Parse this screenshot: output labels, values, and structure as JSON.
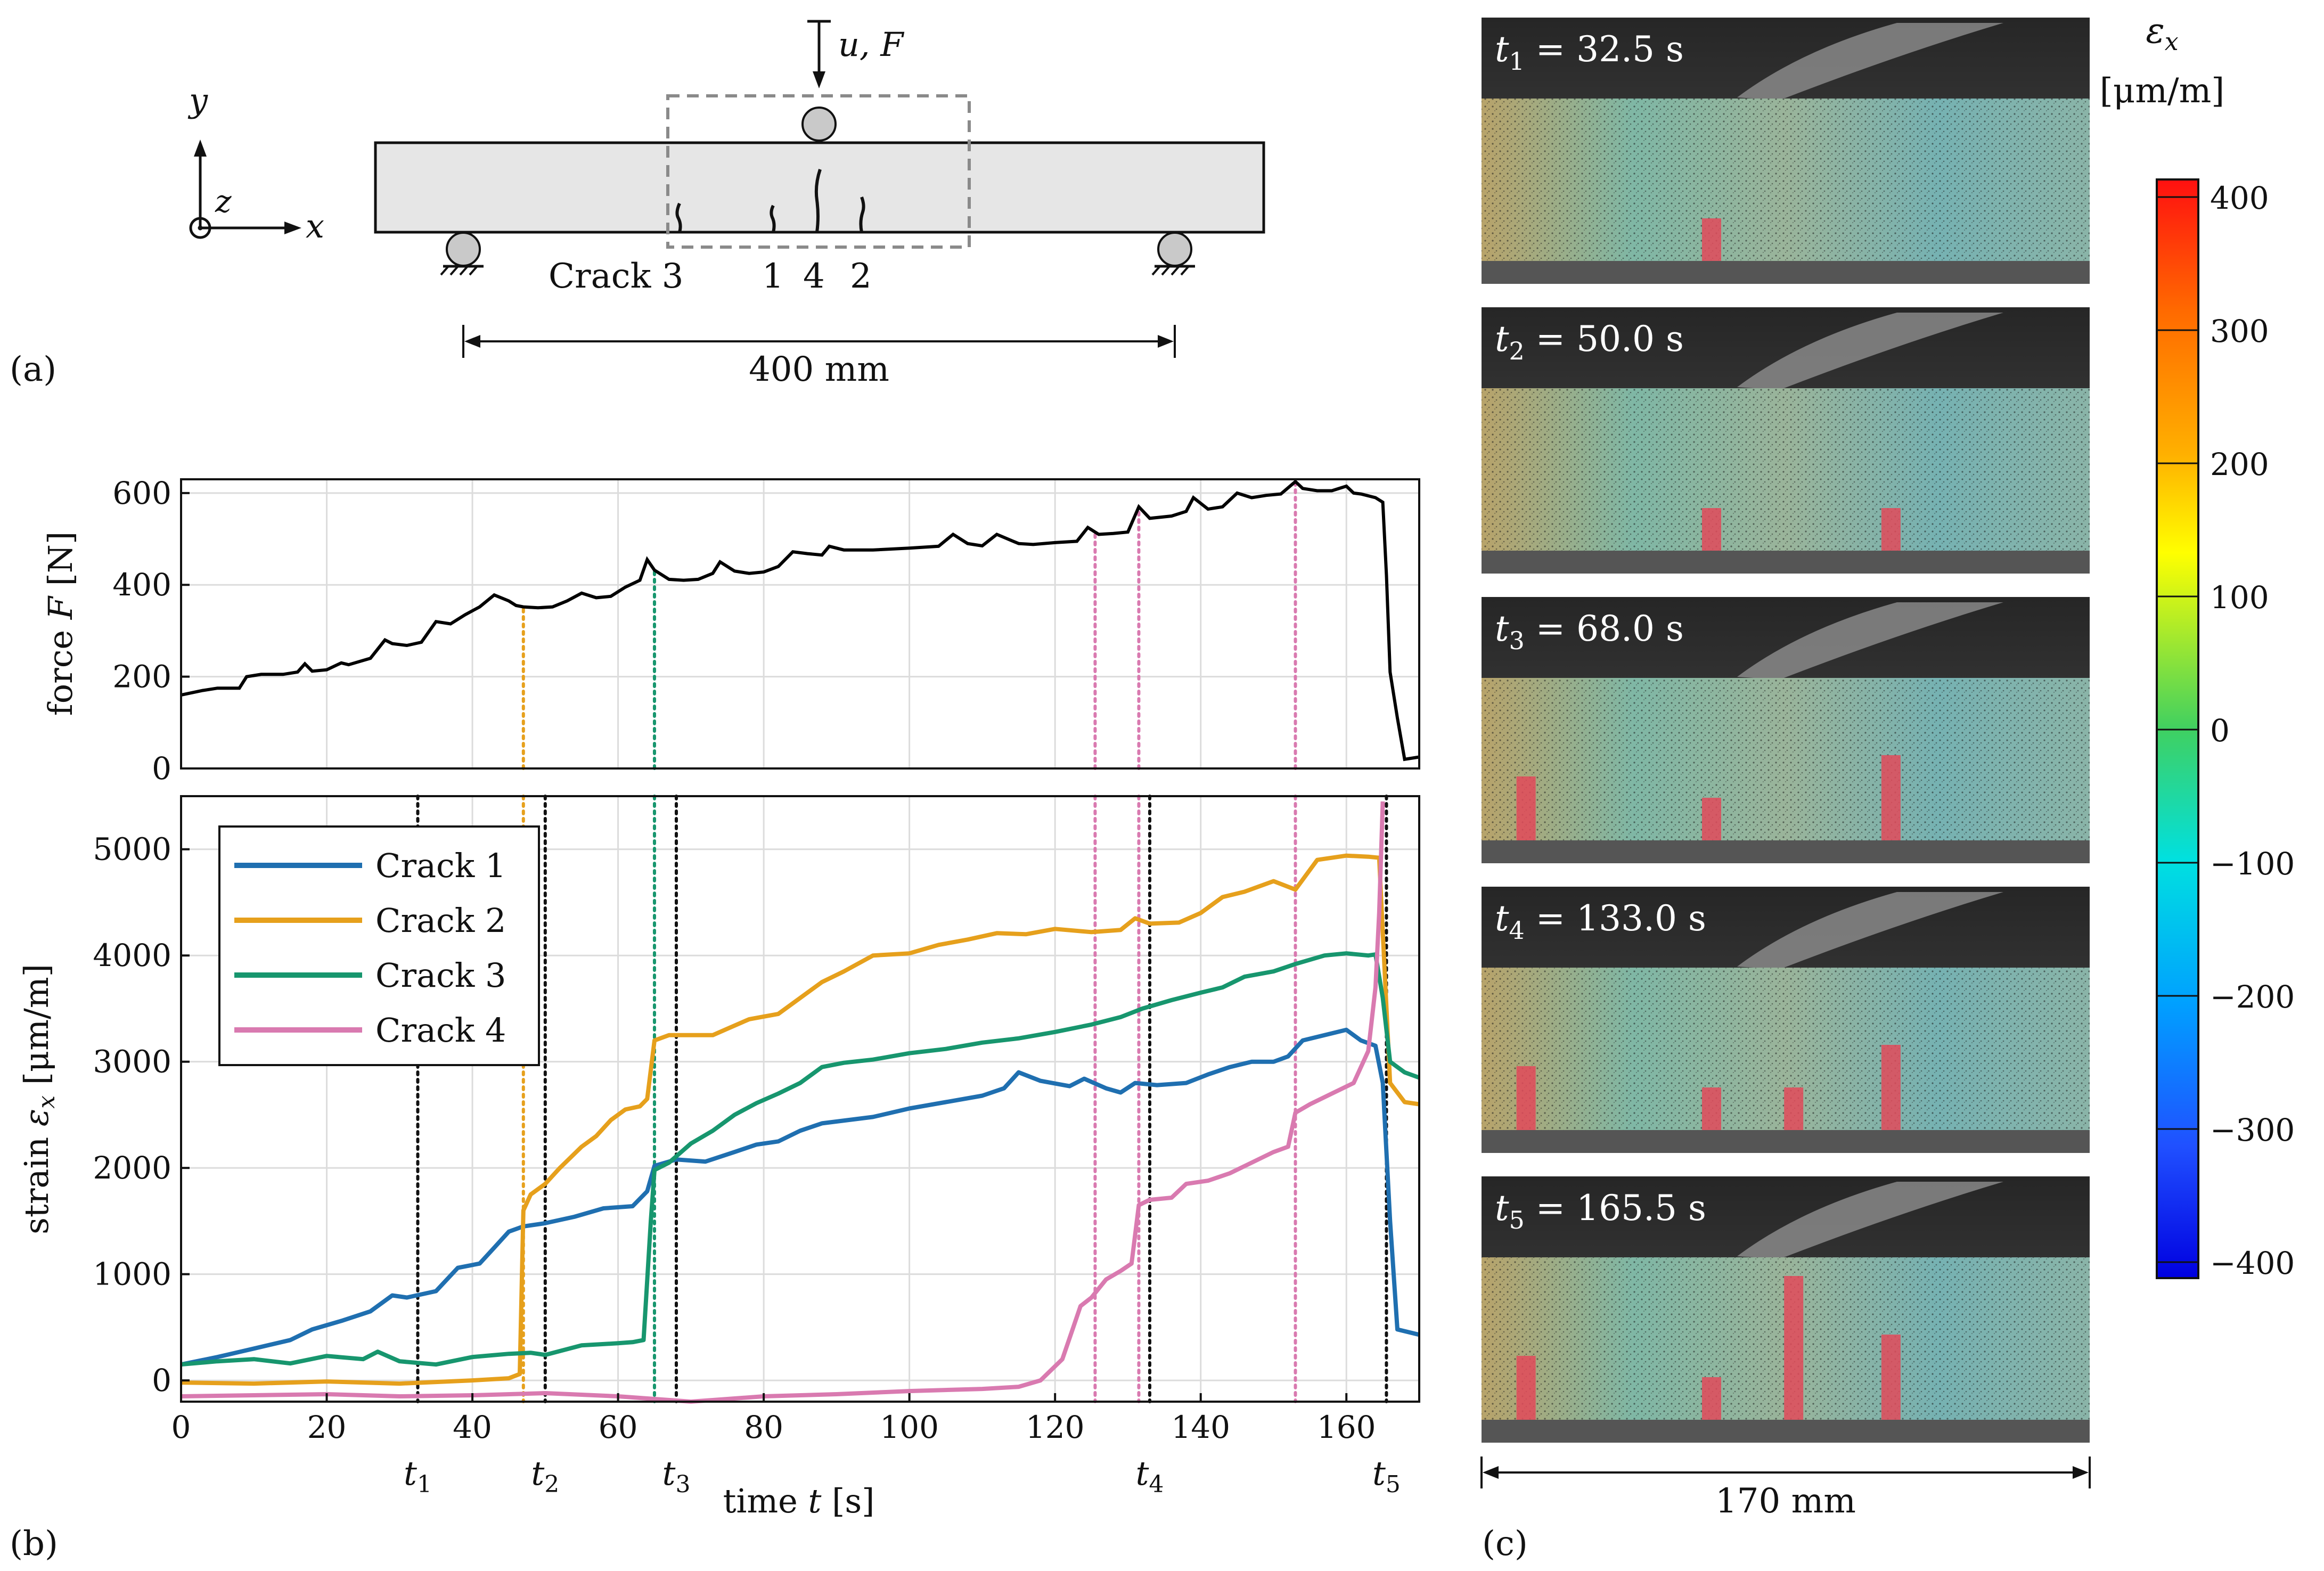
{
  "panel_a": {
    "label": "(a)",
    "load": "u, F",
    "axis_x": "x",
    "axis_y": "y",
    "axis_z": "z",
    "crack_labels": [
      "Crack 3",
      "1",
      "4",
      "2"
    ],
    "span": "400 mm"
  },
  "panel_b": {
    "label": "(b)",
    "time_markers": [
      {
        "name": "t1",
        "sym": "t",
        "sub": "1",
        "time": 32.5
      },
      {
        "name": "t2",
        "sym": "t",
        "sub": "2",
        "time": 50.0
      },
      {
        "name": "t3",
        "sym": "t",
        "sub": "3",
        "time": 68.0
      },
      {
        "name": "t4",
        "sym": "t",
        "sub": "4",
        "time": 133.0
      },
      {
        "name": "t5",
        "sym": "t",
        "sub": "5",
        "time": 165.5
      }
    ],
    "crack_onsets": [
      {
        "crack": "Crack 2",
        "time": 47,
        "color": "#e6a01c"
      },
      {
        "crack": "Crack 3",
        "time": 65,
        "color": "#17966e"
      },
      {
        "crack": "Crack 4",
        "time": 125.5,
        "color": "#d97ab0"
      },
      {
        "crack": "Crack 4",
        "time": 131.5,
        "color": "#d97ab0"
      },
      {
        "crack": "Crack 4",
        "time": 153,
        "color": "#d97ab0"
      }
    ]
  },
  "panel_c": {
    "label": "(c)",
    "width_label": "170 mm",
    "snapshots": [
      {
        "sym": "t",
        "sub": "1",
        "value": " = 32.5 s"
      },
      {
        "sym": "t",
        "sub": "2",
        "value": " = 50.0 s"
      },
      {
        "sym": "t",
        "sub": "3",
        "value": " = 68.0 s"
      },
      {
        "sym": "t",
        "sub": "4",
        "value": " = 133.0 s"
      },
      {
        "sym": "t",
        "sub": "5",
        "value": " = 165.5 s"
      }
    ],
    "colorbar": {
      "title_sym": "ε",
      "title_sub": "x",
      "unit": "[μm/m]",
      "ticks": [
        "400",
        "300",
        "200",
        "100",
        "0",
        "−100",
        "−200",
        "−300",
        "−400"
      ],
      "range": [
        -400,
        400
      ]
    }
  },
  "chart_data": [
    {
      "type": "line",
      "title": "",
      "xlabel": "",
      "ylabel_pre": "force ",
      "ylabel_sym": "F",
      "ylabel_unit": " [N]",
      "xlim": [
        0,
        170
      ],
      "ylim": [
        0,
        630
      ],
      "xticks": [
        0,
        20,
        40,
        60,
        80,
        100,
        120,
        140,
        160
      ],
      "yticks": [
        0,
        200,
        400,
        600
      ],
      "grid": true,
      "series": [
        {
          "name": "force",
          "color": "#000000",
          "x": [
            0,
            3,
            5,
            8,
            9,
            11,
            14,
            16,
            17,
            18,
            20,
            22,
            23,
            26,
            28,
            29,
            31,
            33,
            35,
            37,
            38,
            39,
            41,
            43,
            45,
            46,
            47,
            49,
            51,
            53,
            55,
            57,
            59,
            61,
            63,
            64,
            65,
            67,
            69,
            71,
            73,
            74,
            76,
            78,
            80,
            82,
            84,
            86,
            88,
            89,
            91,
            95,
            100,
            104,
            106,
            108,
            110,
            112,
            115,
            117,
            120,
            123,
            124.5,
            126,
            128,
            130,
            131.5,
            133,
            136,
            138,
            139,
            141,
            143,
            145,
            147,
            149,
            151,
            153,
            154,
            156,
            158,
            160,
            161,
            162,
            164,
            165,
            165.5,
            166,
            167,
            168,
            170
          ],
          "y": [
            160,
            170,
            175,
            175,
            200,
            205,
            205,
            210,
            228,
            212,
            215,
            230,
            226,
            240,
            280,
            272,
            268,
            275,
            320,
            315,
            325,
            335,
            352,
            378,
            365,
            355,
            352,
            350,
            352,
            365,
            382,
            372,
            375,
            395,
            410,
            455,
            432,
            412,
            410,
            412,
            425,
            450,
            430,
            425,
            428,
            440,
            472,
            468,
            465,
            484,
            476,
            476,
            480,
            484,
            510,
            490,
            485,
            510,
            490,
            488,
            492,
            495,
            525,
            510,
            512,
            515,
            570,
            545,
            550,
            560,
            590,
            565,
            570,
            600,
            590,
            595,
            598,
            625,
            610,
            605,
            605,
            615,
            600,
            598,
            590,
            580,
            420,
            210,
            110,
            20,
            25
          ]
        }
      ]
    },
    {
      "type": "line",
      "title": "",
      "xlabel_pre": "time ",
      "xlabel_sym": "t",
      "xlabel_unit": " [s]",
      "ylabel_pre": "strain ",
      "ylabel_sym": "ε",
      "ylabel_sub": "x",
      "ylabel_unit": " [μm/m]",
      "xlim": [
        0,
        170
      ],
      "ylim": [
        -200,
        5500
      ],
      "xticks": [
        0,
        20,
        40,
        60,
        80,
        100,
        120,
        140,
        160
      ],
      "yticks": [
        0,
        1000,
        2000,
        3000,
        4000,
        5000
      ],
      "grid": true,
      "legend": "top-left",
      "series": [
        {
          "name": "Crack 1",
          "color": "#1f6fb0",
          "x": [
            0,
            5,
            10,
            15,
            18,
            22,
            26,
            29,
            31,
            35,
            38,
            41,
            43,
            45,
            47,
            50,
            54,
            58,
            62,
            64,
            65,
            68,
            72,
            76,
            79,
            82,
            85,
            88,
            95,
            100,
            105,
            110,
            113,
            115,
            118,
            122,
            124,
            127,
            129,
            131,
            134,
            138,
            141,
            144,
            147,
            150,
            152,
            154,
            157,
            160,
            162,
            164,
            165,
            166,
            167,
            170
          ],
          "y": [
            150,
            220,
            300,
            380,
            480,
            560,
            650,
            800,
            780,
            840,
            1060,
            1100,
            1250,
            1400,
            1450,
            1480,
            1540,
            1620,
            1640,
            1780,
            2020,
            2080,
            2060,
            2150,
            2220,
            2250,
            2350,
            2420,
            2480,
            2560,
            2620,
            2680,
            2750,
            2900,
            2820,
            2770,
            2840,
            2750,
            2710,
            2800,
            2780,
            2800,
            2880,
            2950,
            3000,
            3000,
            3050,
            3200,
            3250,
            3300,
            3200,
            3150,
            2800,
            1500,
            480,
            430
          ]
        },
        {
          "name": "Crack 2",
          "color": "#e6a01c",
          "x": [
            0,
            10,
            20,
            30,
            40,
            45,
            46.5,
            47,
            48,
            50,
            52,
            55,
            57,
            59,
            61,
            63,
            64,
            65,
            67,
            70,
            73,
            75,
            78,
            82,
            85,
            88,
            91,
            95,
            100,
            104,
            108,
            112,
            116,
            120,
            125,
            129,
            131,
            133,
            137,
            140,
            143,
            146,
            150,
            153,
            156,
            160,
            163,
            164.5,
            166,
            168,
            170
          ],
          "y": [
            -20,
            -30,
            -10,
            -30,
            0,
            20,
            60,
            1600,
            1750,
            1850,
            2000,
            2200,
            2300,
            2450,
            2550,
            2580,
            2650,
            3200,
            3250,
            3250,
            3250,
            3310,
            3400,
            3450,
            3600,
            3750,
            3850,
            4000,
            4020,
            4100,
            4150,
            4210,
            4200,
            4250,
            4220,
            4240,
            4350,
            4300,
            4310,
            4400,
            4550,
            4600,
            4700,
            4620,
            4900,
            4940,
            4930,
            4920,
            2800,
            2620,
            2600
          ]
        },
        {
          "name": "Crack 3",
          "color": "#17966e",
          "x": [
            0,
            5,
            10,
            15,
            20,
            25,
            27,
            30,
            35,
            40,
            45,
            48,
            50,
            55,
            60,
            62,
            63.5,
            64.5,
            65,
            67,
            70,
            73,
            76,
            79,
            82,
            85,
            88,
            91,
            95,
            100,
            105,
            110,
            115,
            120,
            125,
            129,
            132,
            136,
            140,
            143,
            146,
            150,
            153,
            157,
            160,
            163,
            164,
            165,
            166,
            168,
            170
          ],
          "y": [
            150,
            180,
            200,
            160,
            230,
            200,
            270,
            180,
            150,
            220,
            250,
            260,
            240,
            330,
            350,
            360,
            380,
            1500,
            1980,
            2050,
            2230,
            2350,
            2500,
            2610,
            2700,
            2800,
            2950,
            2990,
            3020,
            3080,
            3120,
            3180,
            3220,
            3280,
            3350,
            3420,
            3500,
            3580,
            3650,
            3700,
            3800,
            3850,
            3920,
            4000,
            4020,
            4000,
            4010,
            3600,
            3000,
            2900,
            2850
          ]
        },
        {
          "name": "Crack 4",
          "color": "#d97ab0",
          "x": [
            0,
            10,
            20,
            30,
            40,
            50,
            60,
            70,
            80,
            90,
            100,
            110,
            115,
            118,
            121,
            122.5,
            123.5,
            125,
            127,
            129,
            130.5,
            131.5,
            133,
            136,
            138,
            141,
            144,
            147,
            150,
            152,
            153,
            155,
            158,
            161,
            163,
            164,
            164.5,
            165
          ],
          "y": [
            -150,
            -140,
            -130,
            -150,
            -140,
            -120,
            -150,
            -200,
            -150,
            -130,
            -100,
            -80,
            -60,
            0,
            200,
            500,
            700,
            780,
            950,
            1030,
            1100,
            1650,
            1700,
            1720,
            1850,
            1880,
            1950,
            2050,
            2150,
            2200,
            2520,
            2600,
            2700,
            2800,
            3100,
            3700,
            4400,
            5450
          ]
        }
      ]
    }
  ]
}
